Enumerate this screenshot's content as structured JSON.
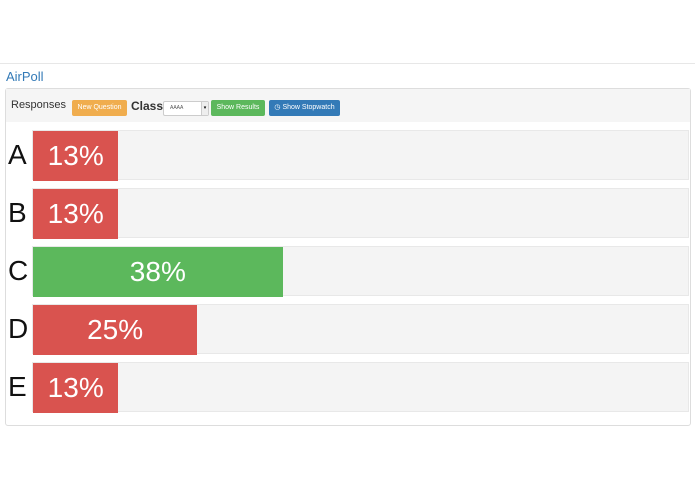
{
  "header": {
    "title": "AirPoll"
  },
  "toolbar": {
    "responses": "Responses",
    "new_question": "New Question",
    "class_label": "Class",
    "class_value": "AAAA",
    "show_results": "Show Results",
    "show_stopwatch": "Show Stopwatch"
  },
  "poll": {
    "rows": [
      {
        "label": "A",
        "value": 13,
        "value_label": "13%",
        "color": "#d9534f"
      },
      {
        "label": "B",
        "value": 13,
        "value_label": "13%",
        "color": "#d9534f"
      },
      {
        "label": "C",
        "value": 38,
        "value_label": "38%",
        "color": "#5cb85c"
      },
      {
        "label": "D",
        "value": 25,
        "value_label": "25%",
        "color": "#d9534f"
      },
      {
        "label": "E",
        "value": 13,
        "value_label": "13%",
        "color": "#d9534f"
      }
    ]
  }
}
